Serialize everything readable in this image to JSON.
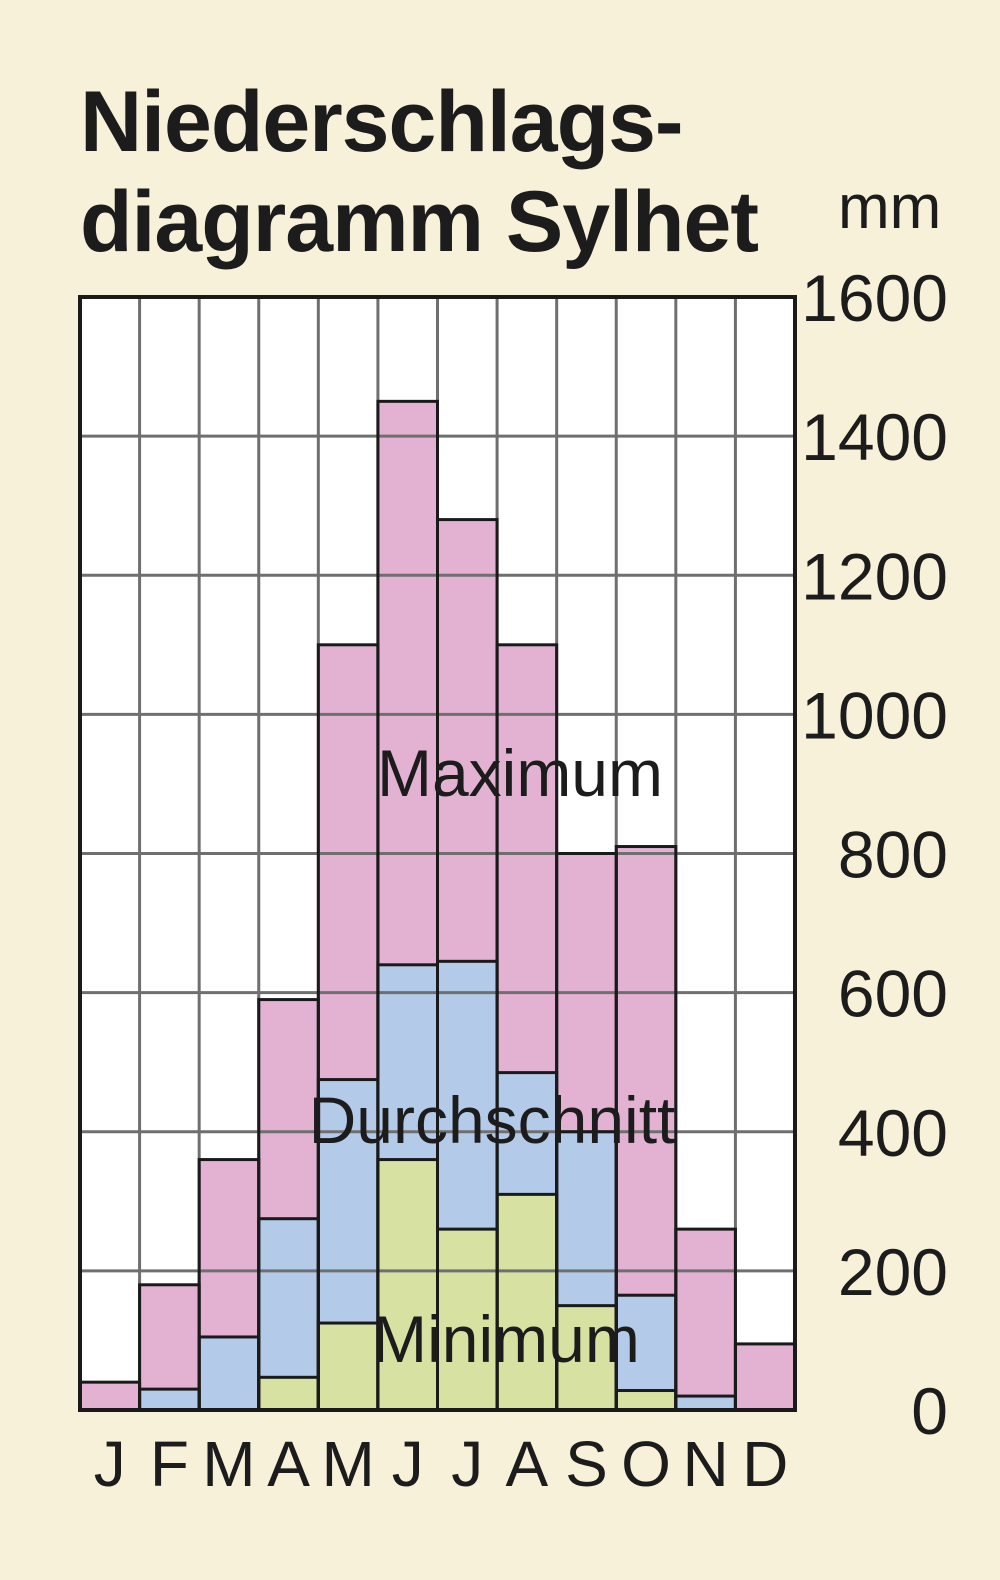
{
  "chart_data": {
    "type": "bar",
    "title_lines": [
      "Niederschlags-",
      "diagramm Sylhet"
    ],
    "unit": "mm",
    "categories": [
      "J",
      "F",
      "M",
      "A",
      "M",
      "J",
      "J",
      "A",
      "S",
      "O",
      "N",
      "D"
    ],
    "ylim": [
      0,
      1600
    ],
    "yticks": [
      "0",
      "200",
      "400",
      "600",
      "800",
      "1000",
      "1200",
      "1400",
      "1600"
    ],
    "series": [
      {
        "name": "Maximum",
        "color": "#e3b2d2",
        "values": [
          40,
          180,
          360,
          590,
          1100,
          1450,
          1280,
          1100,
          800,
          810,
          260,
          95
        ]
      },
      {
        "name": "Durchschnitt",
        "color": "#b3cbe9",
        "values": [
          0,
          30,
          105,
          275,
          475,
          640,
          645,
          485,
          400,
          165,
          20,
          0
        ]
      },
      {
        "name": "Minimum",
        "color": "#d7e1a1",
        "values": [
          0,
          0,
          0,
          47,
          125,
          360,
          260,
          310,
          150,
          28,
          0,
          0
        ]
      }
    ],
    "grid": true,
    "axis_position": "right"
  }
}
